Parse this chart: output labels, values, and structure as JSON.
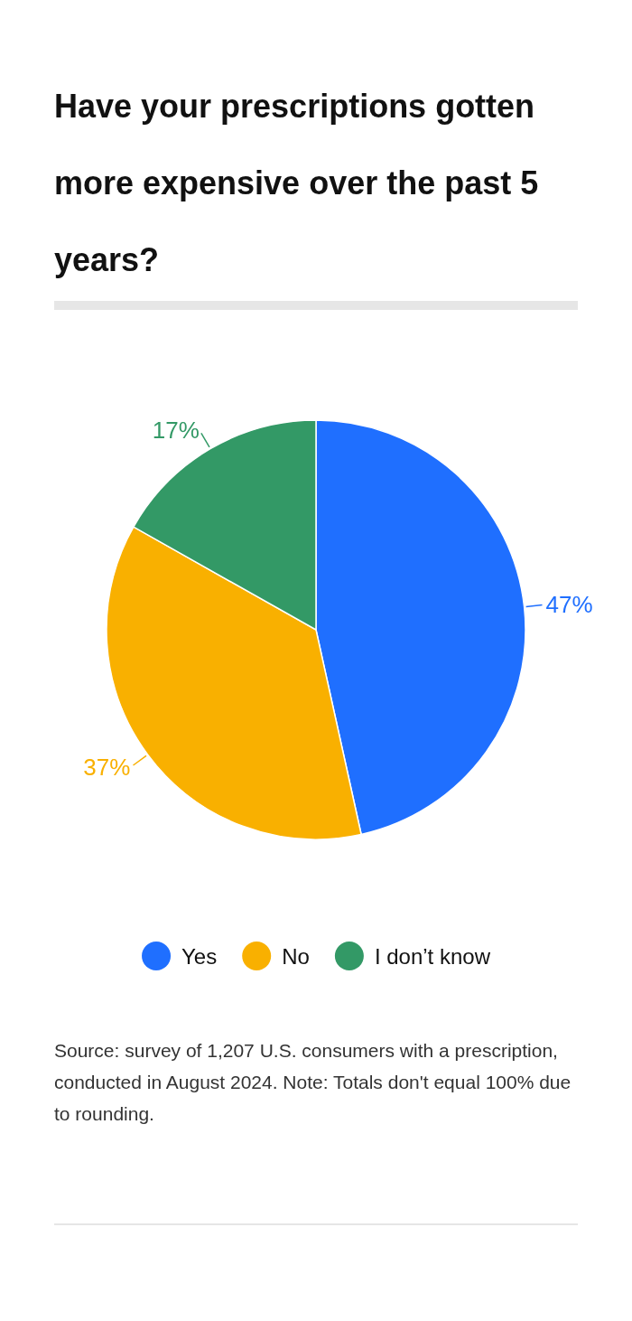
{
  "chart_data": {
    "type": "pie",
    "title": "Have your prescriptions gotten more expensive over the past 5 years?",
    "categories": [
      "Yes",
      "No",
      "I don’t know"
    ],
    "values": [
      47,
      37,
      17
    ],
    "colors": [
      "#1f6fff",
      "#f9b000",
      "#339966"
    ],
    "data_labels": true,
    "value_labels": [
      "47%",
      "37%",
      "17%"
    ],
    "legend": "bottom",
    "annotations": [
      "Source: survey of 1,207 U.S. consumers with a prescription, conducted in August 2024. Note: Totals don't equal 100% due to rounding."
    ]
  }
}
